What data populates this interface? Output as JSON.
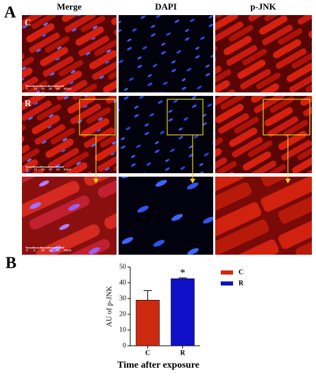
{
  "panel_labels": [
    "A",
    "B"
  ],
  "columns": [
    "Merge",
    "DAPI",
    "p-JNK"
  ],
  "row_labels": [
    "C",
    "R"
  ],
  "scale_bars": [
    {
      "labels": [
        "0",
        "10",
        "20",
        "30",
        "40",
        "50um"
      ]
    },
    {
      "labels": [
        "0",
        "10",
        "20",
        "30",
        "40",
        "50um"
      ]
    },
    {
      "labels": [
        "0",
        "5",
        "10",
        "15",
        "20",
        "25um"
      ]
    }
  ],
  "chart_data": {
    "type": "bar",
    "ylabel": "AU of p-JNK",
    "xlabel": "Time after exposure",
    "categories": [
      "C",
      "R"
    ],
    "values": [
      29,
      42.6
    ],
    "errors": [
      6,
      0.5
    ],
    "colors": [
      "#cc2a10",
      "#1010c8"
    ],
    "annotations": [
      null,
      "*"
    ],
    "ylim": [
      0,
      50
    ],
    "yticks": [
      0,
      10,
      20,
      30,
      40,
      50
    ],
    "legend": "top-right"
  }
}
